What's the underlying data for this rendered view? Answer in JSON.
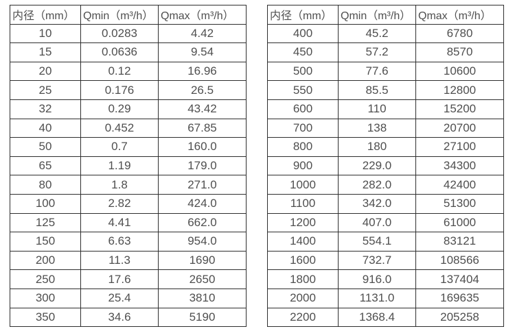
{
  "chart_data": [
    {
      "type": "table",
      "name": "flow-rate-table-small-diameters",
      "columns": [
        "内径（mm）",
        "Qmin（m³/h）",
        "Qmax（m³/h）"
      ],
      "rows": [
        [
          "10",
          "0.0283",
          "4.42"
        ],
        [
          "15",
          "0.0636",
          "9.54"
        ],
        [
          "20",
          "0.12",
          "16.96"
        ],
        [
          "25",
          "0.176",
          "26.5"
        ],
        [
          "32",
          "0.29",
          "43.42"
        ],
        [
          "40",
          "0.452",
          "67.85"
        ],
        [
          "50",
          "0.7",
          "160.0"
        ],
        [
          "65",
          "1.19",
          "179.0"
        ],
        [
          "80",
          "1.8",
          "271.0"
        ],
        [
          "100",
          "2.82",
          "424.0"
        ],
        [
          "125",
          "4.41",
          "662.0"
        ],
        [
          "150",
          "6.63",
          "954.0"
        ],
        [
          "200",
          "11.3",
          "1690"
        ],
        [
          "250",
          "17.6",
          "2650"
        ],
        [
          "300",
          "25.4",
          "3810"
        ],
        [
          "350",
          "34.6",
          "5190"
        ]
      ]
    },
    {
      "type": "table",
      "name": "flow-rate-table-large-diameters",
      "columns": [
        "内径（mm）",
        "Qmin（m³/h）",
        "Qmax（m³/h）"
      ],
      "rows": [
        [
          "400",
          "45.2",
          "6780"
        ],
        [
          "450",
          "57.2",
          "8570"
        ],
        [
          "500",
          "77.6",
          "10600"
        ],
        [
          "550",
          "85.5",
          "12800"
        ],
        [
          "600",
          "110",
          "15200"
        ],
        [
          "700",
          "138",
          "20700"
        ],
        [
          "800",
          "180",
          "27100"
        ],
        [
          "900",
          "229.0",
          "34300"
        ],
        [
          "1000",
          "282.0",
          "42400"
        ],
        [
          "1100",
          "342.0",
          "51300"
        ],
        [
          "1200",
          "407.0",
          "61000"
        ],
        [
          "1400",
          "554.1",
          "83121"
        ],
        [
          "1600",
          "732.7",
          "108566"
        ],
        [
          "1800",
          "916.0",
          "137404"
        ],
        [
          "2000",
          "1131.0",
          "169635"
        ],
        [
          "2200",
          "1368.4",
          "205258"
        ]
      ]
    }
  ],
  "colors": {
    "border": "#2e2e2e",
    "text": "#4f4f4f",
    "background": "#ffffff"
  }
}
